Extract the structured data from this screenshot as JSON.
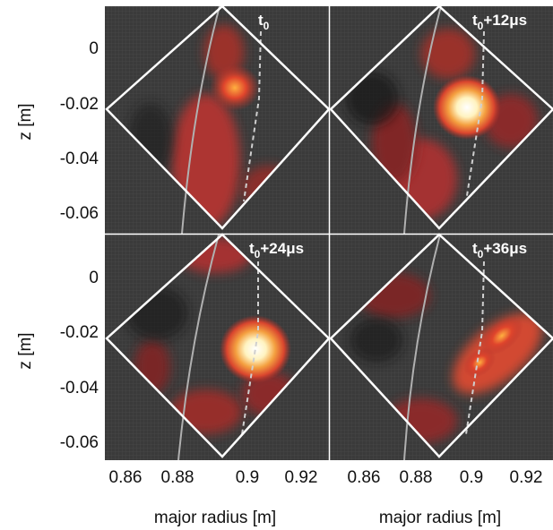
{
  "figure": {
    "xlabel": "major radius [m]",
    "ylabel": "z [m]",
    "x_ticks": [
      "0.86",
      "0.88",
      "0.9",
      "0.92"
    ],
    "y_ticks": [
      "0",
      "-0.02",
      "-0.04",
      "-0.06"
    ],
    "panels": [
      {
        "time_prefix": "t",
        "time_sub": "0",
        "time_suffix": ""
      },
      {
        "time_prefix": "t",
        "time_sub": "0",
        "time_suffix": "+12μs"
      },
      {
        "time_prefix": "t",
        "time_sub": "0",
        "time_suffix": "+24μs"
      },
      {
        "time_prefix": "t",
        "time_sub": "0",
        "time_suffix": "+36μs"
      }
    ]
  },
  "colors": {
    "background": "#3a3a3a",
    "frame": "#ffffff",
    "emission_low": "#6b1f1f",
    "emission_mid": "#c8342e",
    "emission_high": "#ffe08a",
    "peak": "#ffffff"
  }
}
